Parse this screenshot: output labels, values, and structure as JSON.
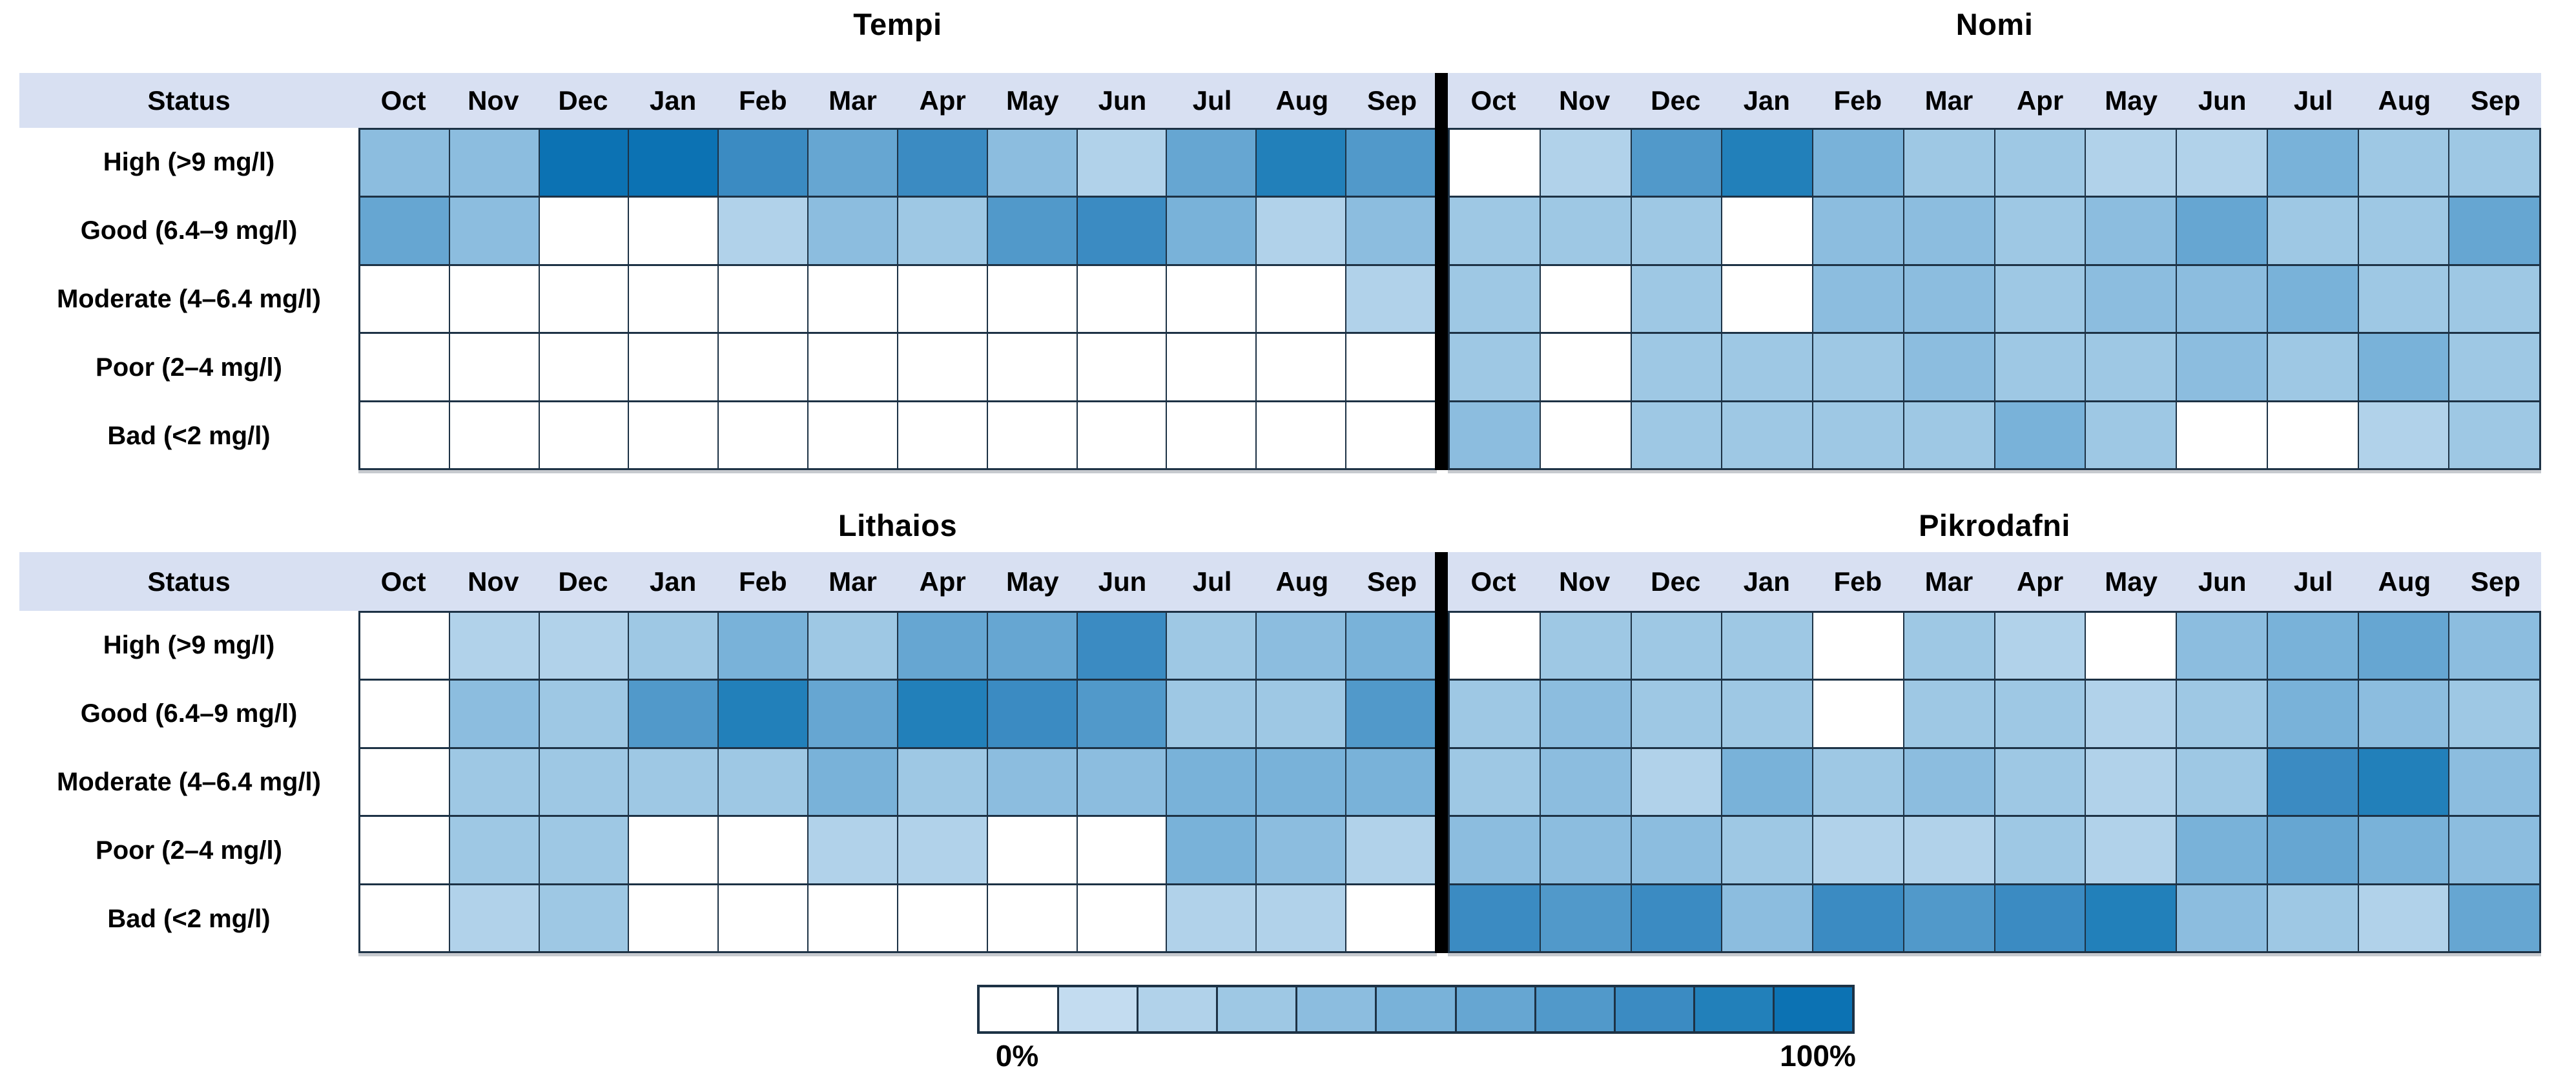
{
  "figure": {
    "header": {
      "status_label": "Status"
    },
    "legend": {
      "min_label": "0%",
      "max_label": "100%",
      "steps": 11
    },
    "palette": [
      "#FFFFFF",
      "#C3DCF0",
      "#B1D2EA",
      "#9EC8E4",
      "#8CBDDF",
      "#79B2D9",
      "#66A6D2",
      "#5199CA",
      "#3B8BC2",
      "#2280BA",
      "#0C72B3"
    ],
    "colors": {
      "header_band": "#D8E0F2",
      "grid_border": "#1D3245",
      "divider": "#000000",
      "background": "#FFFFFF"
    }
  },
  "chart_data": {
    "type": "heatmap",
    "months": [
      "Oct",
      "Nov",
      "Dec",
      "Jan",
      "Feb",
      "Mar",
      "Apr",
      "May",
      "Jun",
      "Jul",
      "Aug",
      "Sep"
    ],
    "status_labels": [
      "High (>9 mg/l)",
      "Good (6.4–9 mg/l)",
      "Moderate (4–6.4 mg/l)",
      "Poor (2–4 mg/l)",
      "Bad (<2 mg/l)"
    ],
    "value_unit": "estimated percent of month in each status, read from shading against legend (0% white – 100% dark blue)",
    "legend_labels": [
      "0%",
      "100%"
    ],
    "tables": [
      {
        "name": "Tempi",
        "values": [
          [
            40,
            40,
            100,
            100,
            80,
            60,
            80,
            40,
            20,
            60,
            90,
            70
          ],
          [
            60,
            40,
            0,
            0,
            20,
            40,
            30,
            70,
            80,
            50,
            20,
            40
          ],
          [
            0,
            0,
            0,
            0,
            0,
            0,
            0,
            0,
            0,
            0,
            0,
            20
          ],
          [
            0,
            0,
            0,
            0,
            0,
            0,
            0,
            0,
            0,
            0,
            0,
            0
          ],
          [
            0,
            0,
            0,
            0,
            0,
            0,
            0,
            0,
            0,
            0,
            0,
            0
          ]
        ]
      },
      {
        "name": "Nomi",
        "values": [
          [
            0,
            20,
            70,
            90,
            50,
            30,
            30,
            20,
            20,
            50,
            30,
            30
          ],
          [
            30,
            30,
            30,
            0,
            40,
            40,
            30,
            40,
            60,
            30,
            30,
            60
          ],
          [
            30,
            0,
            30,
            0,
            40,
            40,
            30,
            40,
            40,
            50,
            30,
            30
          ],
          [
            30,
            0,
            30,
            30,
            30,
            40,
            30,
            30,
            40,
            30,
            50,
            30
          ],
          [
            40,
            0,
            30,
            30,
            30,
            30,
            50,
            30,
            0,
            0,
            20,
            30
          ]
        ]
      },
      {
        "name": "Lithaios",
        "values": [
          [
            0,
            20,
            20,
            30,
            50,
            30,
            60,
            60,
            80,
            30,
            40,
            50
          ],
          [
            0,
            40,
            30,
            70,
            90,
            60,
            90,
            80,
            70,
            30,
            30,
            70
          ],
          [
            0,
            30,
            30,
            30,
            30,
            50,
            30,
            40,
            40,
            50,
            50,
            50
          ],
          [
            0,
            30,
            30,
            0,
            0,
            20,
            20,
            0,
            0,
            50,
            40,
            20
          ],
          [
            0,
            20,
            30,
            0,
            0,
            0,
            0,
            0,
            0,
            20,
            20,
            0
          ]
        ]
      },
      {
        "name": "Pikrodafni",
        "values": [
          [
            0,
            30,
            30,
            30,
            0,
            30,
            20,
            0,
            40,
            50,
            60,
            40
          ],
          [
            30,
            40,
            30,
            30,
            0,
            30,
            30,
            20,
            30,
            50,
            40,
            30
          ],
          [
            30,
            40,
            20,
            50,
            30,
            40,
            30,
            20,
            30,
            80,
            90,
            40
          ],
          [
            40,
            40,
            40,
            30,
            20,
            20,
            30,
            20,
            50,
            60,
            50,
            40
          ],
          [
            80,
            70,
            80,
            40,
            80,
            70,
            80,
            90,
            40,
            30,
            20,
            60
          ]
        ]
      }
    ]
  }
}
